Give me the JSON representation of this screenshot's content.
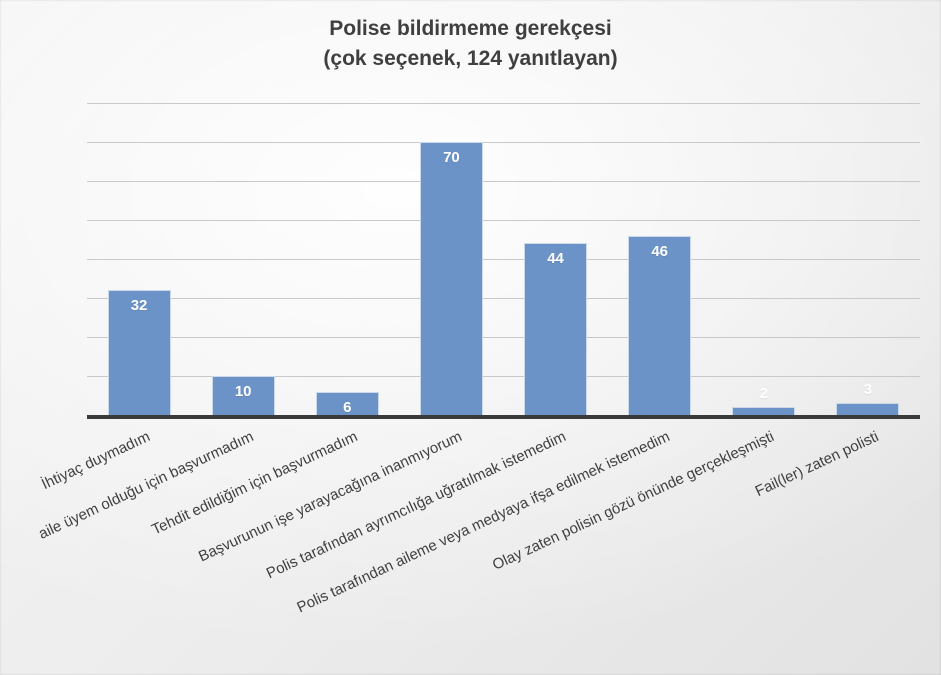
{
  "chart_data": {
    "type": "bar",
    "title": "Polise bildirmeme gerekçesi",
    "subtitle": "(çok seçenek, 124 yanıtlayan)",
    "categories": [
      "İhtiyaç duymadım",
      "aile üyem olduğu için başvurmadım",
      "Tehdit edildiğim için başvurmadım",
      "Başvurunun işe yarayacağına inanmıyorum",
      "Polis tarafından ayrımcılığa uğratılmak istemedim",
      "Polis tarafından aileme veya medyaya ifşa edilmek istemedim",
      "Olay zaten polisin gözü önünde gerçekleşmişti",
      "Fail(ler) zaten polisti"
    ],
    "values": [
      32,
      10,
      6,
      70,
      44,
      46,
      2,
      3
    ],
    "xlabel": "",
    "ylabel": "",
    "ylim": [
      0,
      80
    ],
    "gridline_step": 10,
    "grid": "horizontal",
    "legend_position": "none",
    "bar_color": "#6b93c7",
    "value_label_color": "#ffffff",
    "axis_color": "#3a3a3a",
    "gridline_color": "#c9c9c9",
    "text_color": "#404040",
    "title_color": "#3f3f3f"
  }
}
